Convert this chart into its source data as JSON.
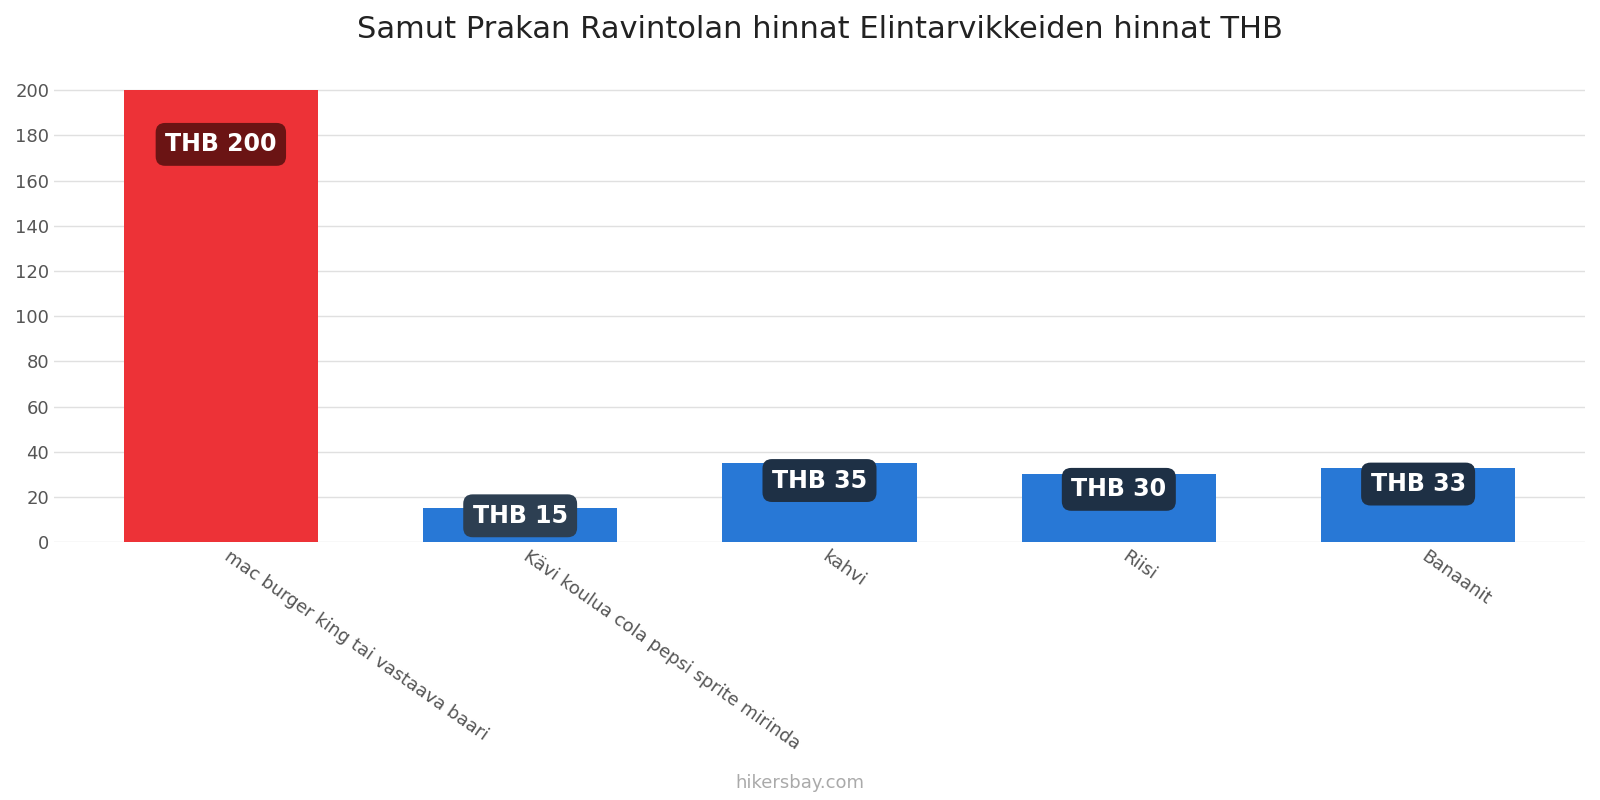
{
  "title": "Samut Prakan Ravintolan hinnat Elintarvikkeiden hinnat THB",
  "categories": [
    "mac burger king tai vastaava baari",
    "Kävi koulua cola pepsi sprite mirinda",
    "kahvi",
    "Riisi",
    "Banaanit"
  ],
  "values": [
    200,
    15,
    35,
    30,
    33
  ],
  "bar_colors": [
    "#ed3237",
    "#2878d6",
    "#2878d6",
    "#2878d6",
    "#2878d6"
  ],
  "label_texts": [
    "THB 200",
    "THB 15",
    "THB 35",
    "THB 30",
    "THB 33"
  ],
  "label_bg_colors": [
    "#6b1414",
    "#2d3f52",
    "#1e3045",
    "#1e3045",
    "#1e3045"
  ],
  "ylim": [
    0,
    212
  ],
  "yticks": [
    0,
    20,
    40,
    60,
    80,
    100,
    120,
    140,
    160,
    180,
    200
  ],
  "footer_text": "hikersbay.com",
  "background_color": "#ffffff",
  "grid_color": "#e0e0e0",
  "title_fontsize": 22,
  "label_fontsize": 17,
  "tick_fontsize": 13,
  "footer_fontsize": 13
}
